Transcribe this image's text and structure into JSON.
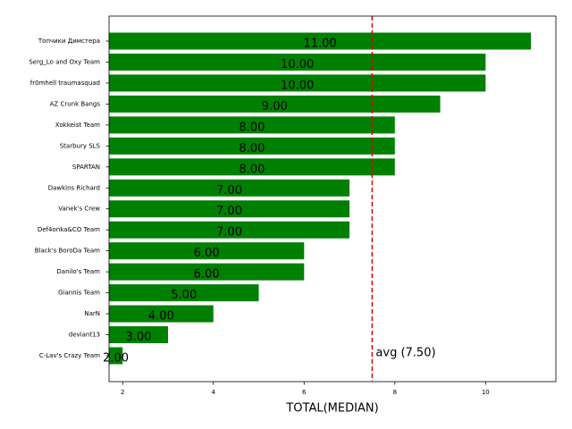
{
  "chart_data": {
    "type": "barh",
    "xlabel": "TOTAL(MEDIAN)",
    "categories": [
      "Топчики Димстера",
      "Serg_Lo and Oxy Team",
      "fr0mhell traumasquad",
      "AZ Crunk Bangs",
      "Xokkeist Team",
      "Starbury SLS",
      "SPARTAN",
      "Dawkins Richard",
      "Vanek's Crew",
      "Def4onka&CO Team",
      "Black's BoroDa Team",
      "Danilo's Team",
      "Giannis Team",
      "NarN",
      "deviant13",
      "C-Lav's Crazy Team"
    ],
    "values": [
      11,
      10,
      10,
      9,
      8,
      8,
      8,
      7,
      7,
      7,
      6,
      6,
      5,
      4,
      3,
      2
    ],
    "value_labels": [
      "11.00",
      "10.00",
      "10.00",
      "9.00",
      "8.00",
      "8.00",
      "8.00",
      "7.00",
      "7.00",
      "7.00",
      "6.00",
      "6.00",
      "5.00",
      "4.00",
      "3.00",
      "2.00"
    ],
    "color": "#008000",
    "xlim": [
      1.7,
      11.55
    ],
    "xticks": [
      2,
      4,
      6,
      8,
      10
    ],
    "avg_line": {
      "value": 7.5,
      "label": "avg (7.50)",
      "color": "#dd0000"
    }
  }
}
